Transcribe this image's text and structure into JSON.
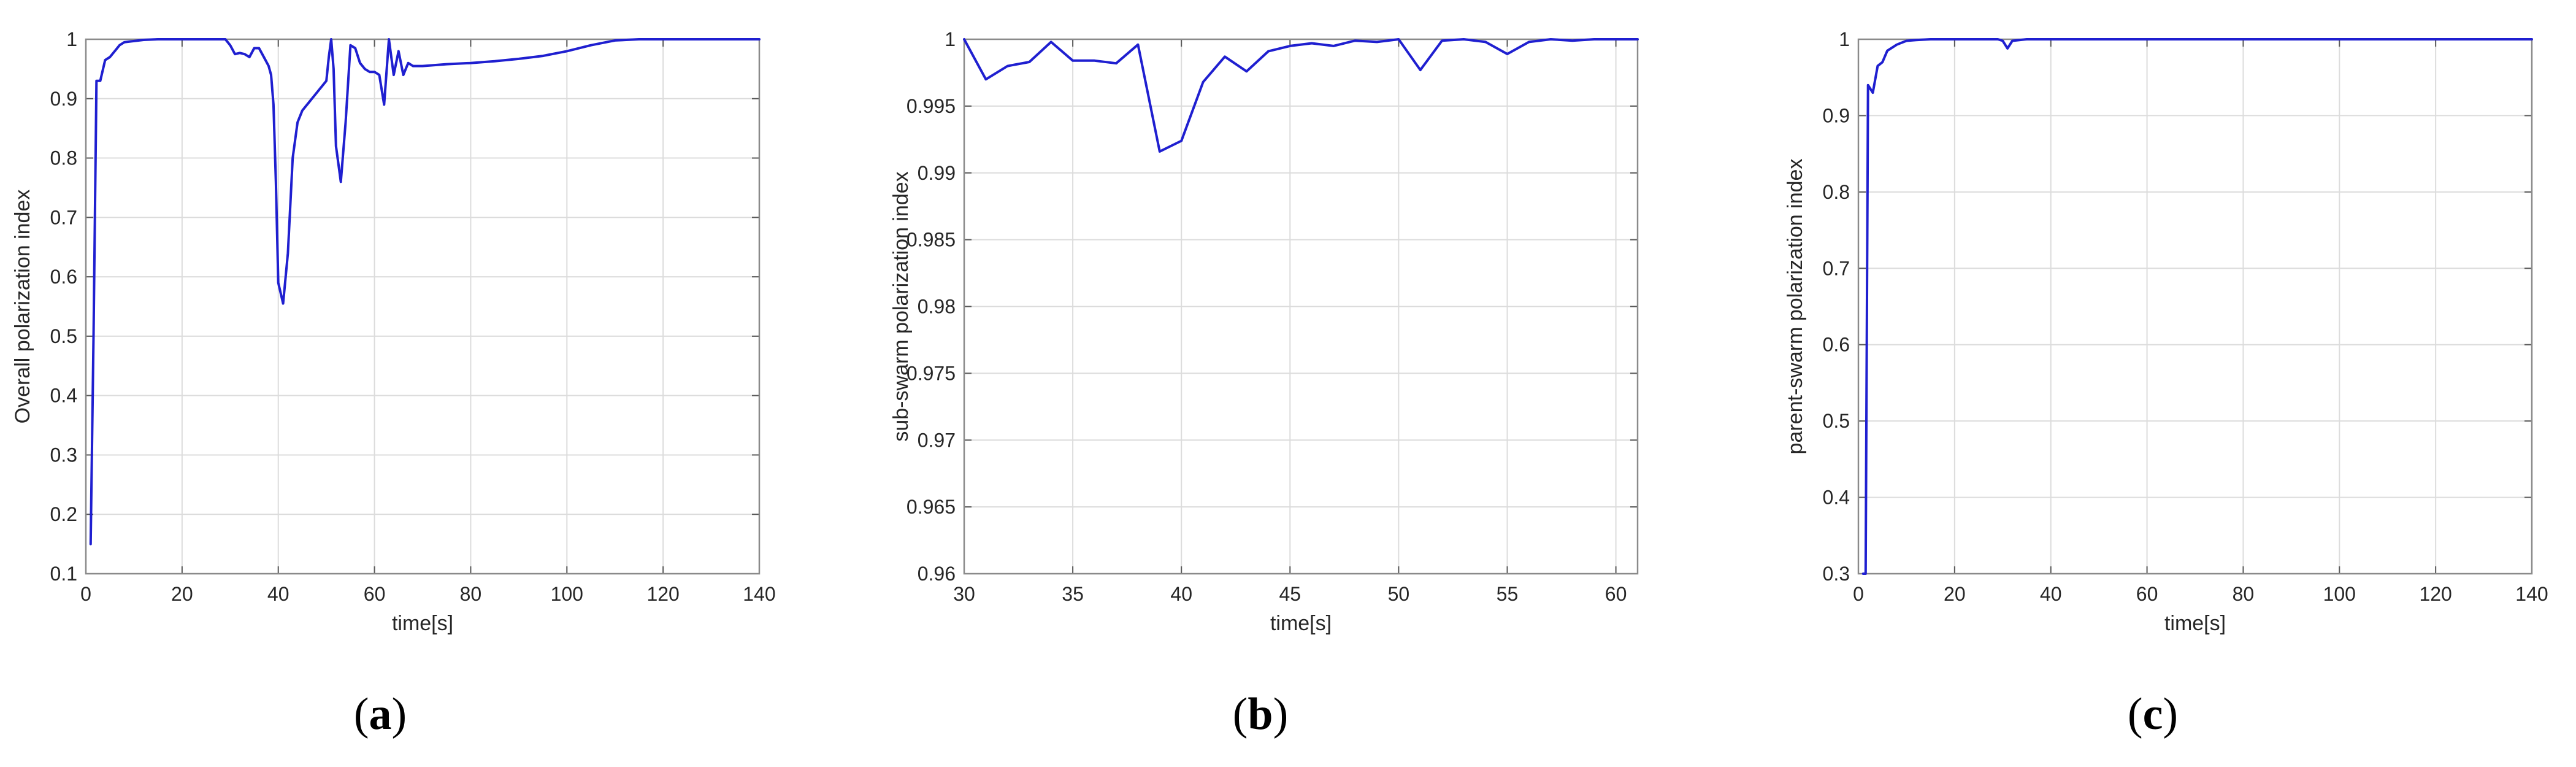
{
  "chart_data": [
    {
      "type": "line",
      "caption": "a",
      "xlabel": "time[s]",
      "ylabel": "Overall polarization index",
      "xlim": [
        0,
        140
      ],
      "ylim": [
        0.1,
        1
      ],
      "xticks": [
        "0",
        "20",
        "40",
        "60",
        "80",
        "100",
        "120",
        "140"
      ],
      "yticks": [
        "0.1",
        "0.2",
        "0.3",
        "0.4",
        "0.5",
        "0.6",
        "0.7",
        "0.8",
        "0.9",
        "1"
      ],
      "grid": true,
      "color": "#1f1fd0",
      "series": [
        {
          "x": [
            1,
            1.6,
            2.2,
            3,
            4,
            5,
            6,
            7,
            8,
            10,
            12,
            15,
            20,
            25,
            29,
            30,
            31,
            32,
            33,
            34,
            35,
            36,
            37,
            38,
            38.5,
            39,
            39.5,
            40,
            41,
            42,
            43,
            44,
            45,
            47,
            49,
            50,
            50.5,
            51,
            51.5,
            52,
            53,
            54,
            55,
            56,
            57,
            58,
            59,
            60,
            61,
            62,
            63,
            64,
            65,
            66,
            67,
            68,
            70,
            75,
            80,
            85,
            90,
            95,
            100,
            105,
            110,
            115,
            120,
            130,
            140
          ],
          "y": [
            0.15,
            0.5,
            0.93,
            0.93,
            0.965,
            0.97,
            0.98,
            0.99,
            0.995,
            0.997,
            0.999,
            1,
            1,
            1,
            1,
            0.99,
            0.975,
            0.977,
            0.975,
            0.97,
            0.985,
            0.985,
            0.97,
            0.955,
            0.94,
            0.89,
            0.76,
            0.59,
            0.555,
            0.64,
            0.8,
            0.86,
            0.88,
            0.9,
            0.92,
            0.93,
            0.97,
            1,
            0.95,
            0.82,
            0.76,
            0.86,
            0.99,
            0.985,
            0.96,
            0.95,
            0.945,
            0.945,
            0.94,
            0.89,
            1,
            0.94,
            0.98,
            0.94,
            0.96,
            0.955,
            0.955,
            0.958,
            0.96,
            0.963,
            0.967,
            0.972,
            0.98,
            0.99,
            0.998,
            1,
            1,
            1,
            1
          ]
        }
      ]
    },
    {
      "type": "line",
      "caption": "b",
      "xlabel": "time[s]",
      "ylabel": "sub-swarm polarization index",
      "xlim": [
        30,
        61
      ],
      "ylim": [
        0.96,
        1
      ],
      "xticks": [
        "30",
        "35",
        "40",
        "45",
        "50",
        "55",
        "60"
      ],
      "yticks": [
        "0.96",
        "0.965",
        "0.97",
        "0.975",
        "0.98",
        "0.985",
        "0.99",
        "0.995",
        "1"
      ],
      "grid": true,
      "color": "#1f1fd0",
      "series": [
        {
          "x": [
            30,
            31,
            32,
            33,
            34,
            35,
            36,
            37,
            38,
            39,
            40,
            41,
            42,
            43,
            44,
            45,
            46,
            47,
            48,
            49,
            50,
            51,
            52,
            53,
            54,
            55,
            56,
            57,
            58,
            59,
            60,
            61
          ],
          "y": [
            1,
            0.997,
            0.998,
            0.9983,
            0.9998,
            0.9984,
            0.9984,
            0.9982,
            0.9996,
            0.9916,
            0.9924,
            0.9968,
            0.9987,
            0.9976,
            0.9991,
            0.9995,
            0.9997,
            0.9995,
            0.9999,
            0.9998,
            1,
            0.9977,
            0.9999,
            1,
            0.9998,
            0.9989,
            0.9998,
            1,
            0.9999,
            1,
            1,
            1
          ]
        }
      ]
    },
    {
      "type": "line",
      "caption": "c",
      "xlabel": "time[s]",
      "ylabel": "parent-swarm polarization index",
      "xlim": [
        0,
        140
      ],
      "ylim": [
        0.3,
        1
      ],
      "xticks": [
        "0",
        "20",
        "40",
        "60",
        "80",
        "100",
        "120",
        "140"
      ],
      "yticks": [
        "0.3",
        "0.4",
        "0.5",
        "0.6",
        "0.7",
        "0.8",
        "0.9",
        "1"
      ],
      "grid": true,
      "color": "#1f1fd0",
      "series": [
        {
          "x": [
            1,
            1.5,
            2,
            3,
            4,
            5,
            6,
            8,
            10,
            12,
            15,
            20,
            29,
            30,
            31,
            32,
            35,
            40,
            60,
            80,
            100,
            120,
            140
          ],
          "y": [
            0.3,
            0.3,
            0.94,
            0.93,
            0.965,
            0.97,
            0.985,
            0.993,
            0.998,
            0.999,
            1,
            1,
            1,
            0.998,
            0.988,
            0.998,
            1,
            1,
            1,
            1,
            1,
            1,
            1
          ]
        }
      ]
    }
  ]
}
